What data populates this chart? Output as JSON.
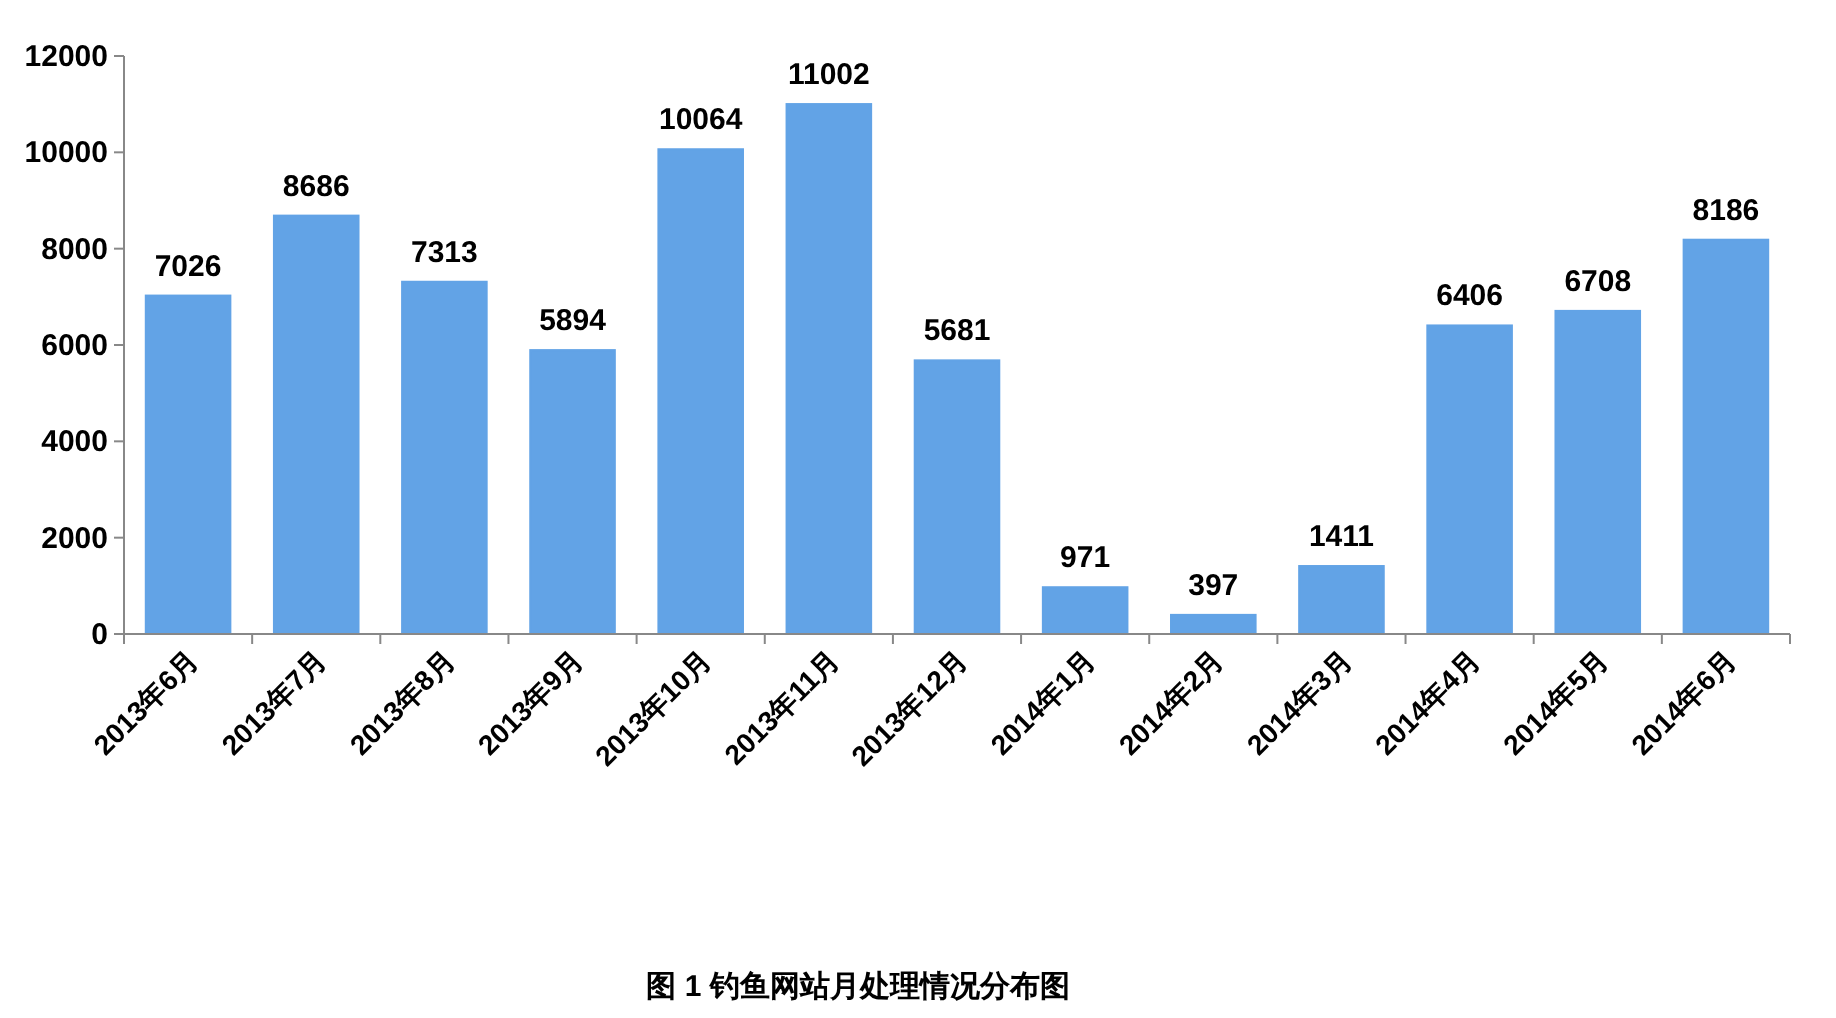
{
  "chart_data": {
    "type": "bar",
    "title": "图 1  钓鱼网站月处理情况分布图",
    "categories": [
      "2013年6月",
      "2013年7月",
      "2013年8月",
      "2013年9月",
      "2013年10月",
      "2013年11月",
      "2013年12月",
      "2014年1月",
      "2014年2月",
      "2014年3月",
      "2014年4月",
      "2014年5月",
      "2014年6月"
    ],
    "values": [
      7026,
      8686,
      7313,
      5894,
      10064,
      11002,
      5681,
      971,
      397,
      1411,
      6406,
      6708,
      8186
    ],
    "color": "#62a3e6",
    "ylim": [
      0,
      12000
    ],
    "yticks": [
      0,
      2000,
      4000,
      6000,
      8000,
      10000,
      12000
    ],
    "data_labels": true,
    "grid": false
  }
}
